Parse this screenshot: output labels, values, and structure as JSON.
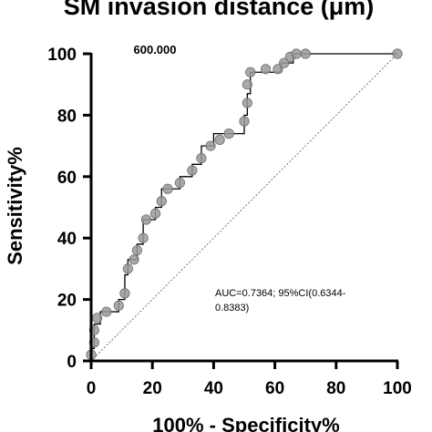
{
  "chart_data": {
    "type": "line",
    "title": "SM invasion distance (μm)",
    "xlabel": "100% - Specificity%",
    "ylabel": "Sensitivity%",
    "xlim": [
      0,
      100
    ],
    "ylim": [
      0,
      100
    ],
    "xticks": [
      "0",
      "20",
      "40",
      "60",
      "80",
      "100"
    ],
    "yticks": [
      "0",
      "20",
      "40",
      "60",
      "80",
      "100"
    ],
    "grid": false,
    "cutoff_label": "600.000",
    "annotation_line1": "AUC=0.7364; 95%CI(0.6344-",
    "annotation_line2": "0.8383)",
    "roc_curve": [
      [
        0,
        0
      ],
      [
        0,
        4
      ],
      [
        1,
        4
      ],
      [
        1,
        8
      ],
      [
        1,
        12
      ],
      [
        3,
        12
      ],
      [
        3,
        16
      ],
      [
        9,
        16
      ],
      [
        9,
        20
      ],
      [
        11,
        20
      ],
      [
        11,
        25
      ],
      [
        11,
        28
      ],
      [
        12,
        28
      ],
      [
        12,
        33
      ],
      [
        15,
        33
      ],
      [
        15,
        38
      ],
      [
        17,
        38
      ],
      [
        17,
        46
      ],
      [
        21,
        46
      ],
      [
        21,
        50
      ],
      [
        23,
        50
      ],
      [
        23,
        54
      ],
      [
        23,
        56
      ],
      [
        29,
        56
      ],
      [
        29,
        60
      ],
      [
        33,
        60
      ],
      [
        33,
        64
      ],
      [
        36,
        64
      ],
      [
        36,
        70
      ],
      [
        40,
        70
      ],
      [
        40,
        74
      ],
      [
        50,
        74
      ],
      [
        50,
        80
      ],
      [
        51,
        80
      ],
      [
        51,
        87
      ],
      [
        52,
        87
      ],
      [
        52,
        94
      ],
      [
        62,
        94
      ],
      [
        62,
        97
      ],
      [
        66,
        97
      ],
      [
        66,
        100
      ],
      [
        100,
        100
      ]
    ],
    "markers": [
      [
        0,
        2
      ],
      [
        1,
        6
      ],
      [
        1,
        10
      ],
      [
        2,
        14
      ],
      [
        5,
        16
      ],
      [
        9,
        18
      ],
      [
        11,
        22
      ],
      [
        12,
        30
      ],
      [
        14,
        33
      ],
      [
        15,
        36
      ],
      [
        17,
        40
      ],
      [
        18,
        46
      ],
      [
        21,
        48
      ],
      [
        23,
        52
      ],
      [
        25,
        56
      ],
      [
        29,
        58
      ],
      [
        33,
        62
      ],
      [
        36,
        66
      ],
      [
        39,
        70
      ],
      [
        42,
        72
      ],
      [
        45,
        74
      ],
      [
        50,
        78
      ],
      [
        51,
        84
      ],
      [
        51,
        90
      ],
      [
        52,
        94
      ],
      [
        57,
        95
      ],
      [
        61,
        95
      ],
      [
        63,
        97
      ],
      [
        65,
        99
      ],
      [
        67,
        100
      ],
      [
        70,
        100
      ],
      [
        100,
        100
      ]
    ],
    "reference_line": [
      [
        0,
        0
      ],
      [
        100,
        100
      ]
    ],
    "series_color": "#000000",
    "marker_fill": "#9a9a9a",
    "reference_color": "#555555"
  }
}
